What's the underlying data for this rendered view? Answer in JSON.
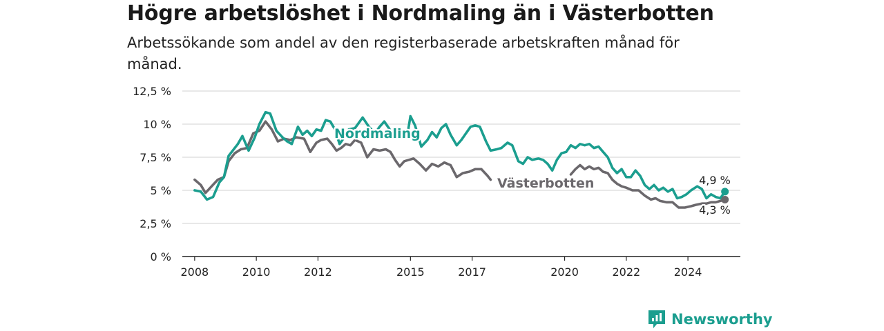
{
  "title": "Högre arbetslöshet i Nordmaling än i Västerbotten",
  "subtitle": "Arbetssökande som andel av den registerbaserade arbetskraften månad för månad.",
  "brand": "Newsworthy",
  "colors": {
    "nordmaling": "#1b9e8f",
    "vasterbotten": "#6b686c",
    "grid": "#d9d9d9",
    "axis": "#222222"
  },
  "chart_data": {
    "type": "line",
    "y_ticks": [
      {
        "value": 0,
        "label": "0 %"
      },
      {
        "value": 2.5,
        "label": "2,5 %"
      },
      {
        "value": 5,
        "label": "5 %"
      },
      {
        "value": 7.5,
        "label": "7,5 %"
      },
      {
        "value": 10,
        "label": "10 %"
      },
      {
        "value": 12.5,
        "label": "12,5 %"
      }
    ],
    "x_ticks": [
      {
        "value": 2008,
        "label": "2008"
      },
      {
        "value": 2010,
        "label": "2010"
      },
      {
        "value": 2012,
        "label": "2012"
      },
      {
        "value": 2015,
        "label": "2015"
      },
      {
        "value": 2017,
        "label": "2017"
      },
      {
        "value": 2020,
        "label": "2020"
      },
      {
        "value": 2022,
        "label": "2022"
      },
      {
        "value": 2024,
        "label": "2024"
      }
    ],
    "xlim": [
      2007.6,
      2025.7
    ],
    "ylim": [
      0,
      12.5
    ],
    "grid": true,
    "series": [
      {
        "name": "Nordmaling",
        "color": "#1b9e8f",
        "end_label": "4,9 %",
        "points": [
          [
            2008.0,
            5.0
          ],
          [
            2008.2,
            4.9
          ],
          [
            2008.4,
            4.3
          ],
          [
            2008.6,
            4.5
          ],
          [
            2008.8,
            5.6
          ],
          [
            2008.95,
            6.0
          ],
          [
            2009.1,
            7.6
          ],
          [
            2009.4,
            8.5
          ],
          [
            2009.55,
            9.1
          ],
          [
            2009.75,
            8.0
          ],
          [
            2009.95,
            9.0
          ],
          [
            2010.1,
            10.0
          ],
          [
            2010.3,
            10.9
          ],
          [
            2010.45,
            10.8
          ],
          [
            2010.65,
            9.5
          ],
          [
            2010.85,
            9.0
          ],
          [
            2011.0,
            8.7
          ],
          [
            2011.15,
            8.5
          ],
          [
            2011.35,
            9.8
          ],
          [
            2011.5,
            9.2
          ],
          [
            2011.65,
            9.5
          ],
          [
            2011.8,
            9.1
          ],
          [
            2011.95,
            9.6
          ],
          [
            2012.1,
            9.5
          ],
          [
            2012.25,
            10.3
          ],
          [
            2012.4,
            10.2
          ],
          [
            2012.55,
            9.6
          ],
          [
            2012.7,
            8.5
          ],
          [
            2012.85,
            9.0
          ],
          [
            2013.0,
            9.6
          ],
          [
            2013.2,
            9.7
          ],
          [
            2013.45,
            10.5
          ],
          [
            2013.65,
            9.8
          ],
          [
            2013.85,
            9.3
          ],
          [
            2014.0,
            9.8
          ],
          [
            2014.15,
            10.2
          ],
          [
            2014.3,
            9.7
          ],
          [
            2014.45,
            9.1
          ],
          [
            2014.6,
            9.6
          ],
          [
            2014.75,
            9.0
          ],
          [
            2014.9,
            9.2
          ],
          [
            2015.0,
            10.6
          ],
          [
            2015.15,
            9.9
          ],
          [
            2015.35,
            8.3
          ],
          [
            2015.55,
            8.8
          ],
          [
            2015.7,
            9.4
          ],
          [
            2015.85,
            9.0
          ],
          [
            2016.0,
            9.7
          ],
          [
            2016.15,
            10.0
          ],
          [
            2016.3,
            9.2
          ],
          [
            2016.5,
            8.4
          ],
          [
            2016.65,
            8.8
          ],
          [
            2016.8,
            9.3
          ],
          [
            2016.95,
            9.8
          ],
          [
            2017.1,
            9.9
          ],
          [
            2017.25,
            9.8
          ],
          [
            2017.45,
            8.7
          ],
          [
            2017.6,
            8.0
          ],
          [
            2017.8,
            8.1
          ],
          [
            2017.95,
            8.2
          ],
          [
            2018.15,
            8.6
          ],
          [
            2018.3,
            8.4
          ],
          [
            2018.5,
            7.2
          ],
          [
            2018.65,
            7.0
          ],
          [
            2018.8,
            7.5
          ],
          [
            2018.95,
            7.3
          ],
          [
            2019.15,
            7.4
          ],
          [
            2019.3,
            7.3
          ],
          [
            2019.45,
            7.0
          ],
          [
            2019.6,
            6.5
          ],
          [
            2019.75,
            7.3
          ],
          [
            2019.9,
            7.8
          ],
          [
            2020.05,
            7.9
          ],
          [
            2020.2,
            8.4
          ],
          [
            2020.35,
            8.2
          ],
          [
            2020.5,
            8.5
          ],
          [
            2020.65,
            8.4
          ],
          [
            2020.8,
            8.5
          ],
          [
            2020.95,
            8.2
          ],
          [
            2021.1,
            8.3
          ],
          [
            2021.25,
            7.9
          ],
          [
            2021.4,
            7.5
          ],
          [
            2021.55,
            6.7
          ],
          [
            2021.7,
            6.3
          ],
          [
            2021.85,
            6.6
          ],
          [
            2022.0,
            6.0
          ],
          [
            2022.15,
            6.0
          ],
          [
            2022.3,
            6.5
          ],
          [
            2022.45,
            6.1
          ],
          [
            2022.6,
            5.4
          ],
          [
            2022.75,
            5.1
          ],
          [
            2022.9,
            5.4
          ],
          [
            2023.05,
            5.0
          ],
          [
            2023.2,
            5.2
          ],
          [
            2023.35,
            4.9
          ],
          [
            2023.5,
            5.1
          ],
          [
            2023.65,
            4.4
          ],
          [
            2023.8,
            4.5
          ],
          [
            2023.95,
            4.7
          ],
          [
            2024.1,
            5.0
          ],
          [
            2024.3,
            5.3
          ],
          [
            2024.45,
            5.1
          ],
          [
            2024.6,
            4.4
          ],
          [
            2024.75,
            4.7
          ],
          [
            2024.9,
            4.5
          ],
          [
            2025.05,
            4.4
          ],
          [
            2025.2,
            4.9
          ]
        ]
      },
      {
        "name": "Västerbotten",
        "color": "#6b686c",
        "end_label": "4,3 %",
        "segments": [
          [
            [
              2008.0,
              5.8
            ],
            [
              2008.2,
              5.4
            ],
            [
              2008.35,
              4.8
            ],
            [
              2008.55,
              5.3
            ],
            [
              2008.75,
              5.8
            ],
            [
              2008.95,
              6.0
            ],
            [
              2009.1,
              7.2
            ],
            [
              2009.3,
              7.8
            ],
            [
              2009.5,
              8.1
            ],
            [
              2009.7,
              8.2
            ],
            [
              2009.9,
              9.3
            ],
            [
              2010.1,
              9.5
            ],
            [
              2010.3,
              10.2
            ],
            [
              2010.5,
              9.6
            ],
            [
              2010.7,
              8.7
            ],
            [
              2010.9,
              8.9
            ],
            [
              2011.1,
              8.8
            ],
            [
              2011.3,
              9.0
            ],
            [
              2011.55,
              8.9
            ],
            [
              2011.75,
              7.9
            ],
            [
              2011.95,
              8.6
            ],
            [
              2012.1,
              8.8
            ],
            [
              2012.3,
              8.9
            ],
            [
              2012.45,
              8.5
            ],
            [
              2012.6,
              8.0
            ],
            [
              2012.75,
              8.2
            ],
            [
              2012.9,
              8.5
            ],
            [
              2013.05,
              8.4
            ],
            [
              2013.2,
              8.8
            ],
            [
              2013.4,
              8.6
            ],
            [
              2013.6,
              7.5
            ],
            [
              2013.8,
              8.1
            ],
            [
              2014.0,
              8.0
            ],
            [
              2014.2,
              8.1
            ],
            [
              2014.35,
              7.9
            ],
            [
              2014.5,
              7.3
            ],
            [
              2014.65,
              6.8
            ],
            [
              2014.8,
              7.2
            ],
            [
              2014.95,
              7.3
            ],
            [
              2015.1,
              7.4
            ],
            [
              2015.3,
              7.0
            ],
            [
              2015.5,
              6.5
            ],
            [
              2015.7,
              7.0
            ],
            [
              2015.9,
              6.8
            ],
            [
              2016.1,
              7.1
            ],
            [
              2016.3,
              6.9
            ],
            [
              2016.5,
              6.0
            ],
            [
              2016.7,
              6.3
            ],
            [
              2016.9,
              6.4
            ],
            [
              2017.1,
              6.6
            ],
            [
              2017.3,
              6.6
            ],
            [
              2017.5,
              6.1
            ],
            [
              2017.6,
              5.8
            ]
          ],
          [
            [
              2020.2,
              6.2
            ],
            [
              2020.35,
              6.6
            ],
            [
              2020.5,
              6.9
            ],
            [
              2020.65,
              6.6
            ],
            [
              2020.8,
              6.8
            ],
            [
              2020.95,
              6.6
            ],
            [
              2021.1,
              6.7
            ],
            [
              2021.25,
              6.4
            ],
            [
              2021.4,
              6.3
            ],
            [
              2021.55,
              5.8
            ],
            [
              2021.7,
              5.5
            ],
            [
              2021.85,
              5.3
            ],
            [
              2022.0,
              5.2
            ],
            [
              2022.2,
              5.0
            ],
            [
              2022.4,
              5.0
            ],
            [
              2022.6,
              4.6
            ],
            [
              2022.8,
              4.3
            ],
            [
              2022.95,
              4.4
            ],
            [
              2023.1,
              4.2
            ],
            [
              2023.3,
              4.1
            ],
            [
              2023.5,
              4.1
            ],
            [
              2023.7,
              3.7
            ],
            [
              2023.9,
              3.7
            ],
            [
              2024.1,
              3.8
            ],
            [
              2024.25,
              3.9
            ],
            [
              2024.45,
              4.0
            ],
            [
              2024.6,
              4.0
            ],
            [
              2024.75,
              4.1
            ],
            [
              2024.9,
              4.1
            ],
            [
              2025.05,
              4.2
            ],
            [
              2025.2,
              4.3
            ]
          ]
        ]
      }
    ],
    "inline_labels": [
      {
        "text": "Nordmaling",
        "series": "Nordmaling"
      },
      {
        "text": "Västerbotten",
        "series": "Västerbotten"
      }
    ]
  }
}
